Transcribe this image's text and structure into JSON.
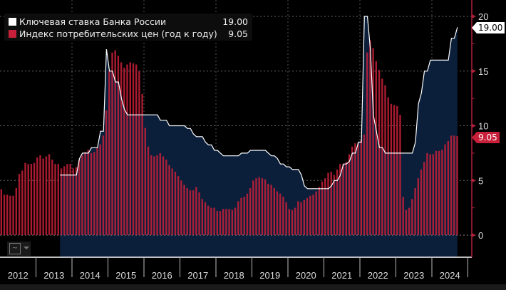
{
  "chart_data": {
    "type": "bar+area",
    "title": "",
    "xlabel": "",
    "ylabel": "",
    "ylim": [
      -2,
      20
    ],
    "yticks": [
      0,
      5,
      10,
      15,
      20
    ],
    "x_tick_labels": [
      "2012",
      "2013",
      "2014",
      "2015",
      "2016",
      "2017",
      "2018",
      "2019",
      "2020",
      "2021",
      "2022",
      "2023",
      "2024"
    ],
    "x_start": "2012-01",
    "frequency": "monthly",
    "grid": true,
    "legend_position": "top-left",
    "series": [
      {
        "name": "Ключевая ставка Банка России",
        "type": "area-line",
        "color": "#ffffff",
        "fill": "#0b1f3a",
        "last_value": "19.00",
        "start": "2013-09",
        "values": [
          5.5,
          5.5,
          5.5,
          5.5,
          5.5,
          5.5,
          7.0,
          7.5,
          7.5,
          7.5,
          8.0,
          8.0,
          8.0,
          9.5,
          9.5,
          17.0,
          15.0,
          15.0,
          14.0,
          14.0,
          12.5,
          11.5,
          11.0,
          11.0,
          11.0,
          11.0,
          11.0,
          11.0,
          11.0,
          11.0,
          11.0,
          11.0,
          11.0,
          10.5,
          10.5,
          10.5,
          10.0,
          10.0,
          10.0,
          10.0,
          10.0,
          10.0,
          9.75,
          9.75,
          9.25,
          9.0,
          9.0,
          9.0,
          8.5,
          8.25,
          8.25,
          7.75,
          7.75,
          7.5,
          7.25,
          7.25,
          7.25,
          7.25,
          7.25,
          7.25,
          7.5,
          7.5,
          7.5,
          7.75,
          7.75,
          7.75,
          7.75,
          7.75,
          7.75,
          7.5,
          7.25,
          7.25,
          7.0,
          6.5,
          6.5,
          6.25,
          6.25,
          6.0,
          6.0,
          6.0,
          5.5,
          4.5,
          4.25,
          4.25,
          4.25,
          4.25,
          4.25,
          4.25,
          4.25,
          4.25,
          4.5,
          5.0,
          5.0,
          5.5,
          6.5,
          6.5,
          6.75,
          7.5,
          7.5,
          8.5,
          8.5,
          20.0,
          20.0,
          17.0,
          11.0,
          9.5,
          8.0,
          8.0,
          7.5,
          7.5,
          7.5,
          7.5,
          7.5,
          7.5,
          7.5,
          7.5,
          7.5,
          7.5,
          8.5,
          12.0,
          13.0,
          15.0,
          15.0,
          16.0,
          16.0,
          16.0,
          16.0,
          16.0,
          16.0,
          16.0,
          18.0,
          18.0,
          19.0
        ]
      },
      {
        "name": "Индекс потребительских цен (год к году)",
        "type": "bar",
        "color": "#c8203a",
        "last_value": "9.05",
        "start": "2012-01",
        "values": [
          4.2,
          3.7,
          3.7,
          3.6,
          3.6,
          4.3,
          5.6,
          5.9,
          6.6,
          6.5,
          6.5,
          6.6,
          7.1,
          7.3,
          7.0,
          7.2,
          7.4,
          6.9,
          6.5,
          6.5,
          6.1,
          6.3,
          6.5,
          6.5,
          6.1,
          6.2,
          6.9,
          7.3,
          7.6,
          7.8,
          7.5,
          7.6,
          8.0,
          8.3,
          9.1,
          11.4,
          15.0,
          16.7,
          16.9,
          16.4,
          15.8,
          15.3,
          15.6,
          15.8,
          15.7,
          15.6,
          15.0,
          12.9,
          9.8,
          8.1,
          7.3,
          7.2,
          7.3,
          7.5,
          7.2,
          6.9,
          6.4,
          6.1,
          5.8,
          5.4,
          5.0,
          4.6,
          4.3,
          4.1,
          4.1,
          4.4,
          3.9,
          3.3,
          3.0,
          2.7,
          2.5,
          2.5,
          2.2,
          2.2,
          2.4,
          2.4,
          2.4,
          2.3,
          2.5,
          3.1,
          3.4,
          3.5,
          3.8,
          4.3,
          5.0,
          5.2,
          5.3,
          5.2,
          5.1,
          4.7,
          4.6,
          4.3,
          4.0,
          3.8,
          3.5,
          3.0,
          2.4,
          2.3,
          2.5,
          3.1,
          3.0,
          3.2,
          3.4,
          3.6,
          3.7,
          4.0,
          4.4,
          4.9,
          5.2,
          5.7,
          5.8,
          5.5,
          6.0,
          6.5,
          6.5,
          6.7,
          7.4,
          8.1,
          8.4,
          8.4,
          8.7,
          9.2,
          16.7,
          17.8,
          17.1,
          15.9,
          15.1,
          14.3,
          13.7,
          12.6,
          12.0,
          11.9,
          11.8,
          11.0,
          3.5,
          2.3,
          2.5,
          3.3,
          4.3,
          5.2,
          6.0,
          6.7,
          7.5,
          7.4,
          7.4,
          7.7,
          7.7,
          7.8,
          8.3,
          8.6,
          9.1,
          9.1,
          9.05
        ]
      }
    ]
  },
  "legend": {
    "items": [
      {
        "label": "Ключевая ставка Банка России",
        "value": "19.00",
        "color": "#ffffff"
      },
      {
        "label": "Индекс потребительских цен (год к году)",
        "value": "9.05",
        "color": "#c8203a"
      }
    ]
  },
  "tags": {
    "rate": "19.00",
    "cpi": "9.05"
  },
  "axis_color": "#b0203a",
  "chart_type_icon": "line-chart-icon"
}
